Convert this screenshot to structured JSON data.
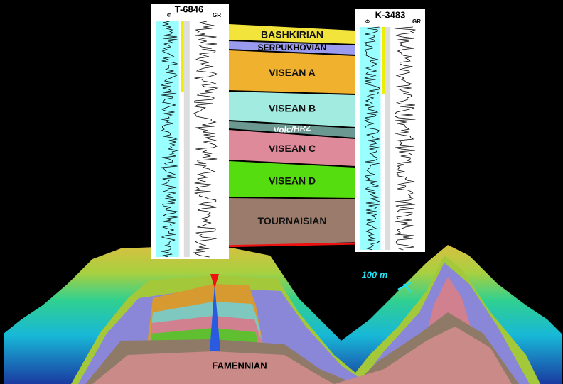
{
  "wells": [
    {
      "name": "T-6846",
      "phi_label": "Φ",
      "gr_label": "GR"
    },
    {
      "name": "K-3483",
      "phi_label": "Φ",
      "gr_label": "GR"
    }
  ],
  "zones": [
    {
      "label": "BASHKIRIAN",
      "color": "#f3e43c"
    },
    {
      "label": "SERPUKHOVIAN",
      "color": "#9a9aee"
    },
    {
      "label": "VISEAN  A",
      "color": "#f0b12e"
    },
    {
      "label": "VISEAN  B",
      "color": "#a2ebe1"
    },
    {
      "label": "Volc/HRZ",
      "color": "#6b9890"
    },
    {
      "label": "VISEAN  C",
      "color": "#de8a9a"
    },
    {
      "label": "VISEAN  D",
      "color": "#55dd10"
    },
    {
      "label": "TOURNAISIAN",
      "color": "#9b7b6b"
    }
  ],
  "basement_label": "FAMENNIAN",
  "scale_label": "100 m"
}
